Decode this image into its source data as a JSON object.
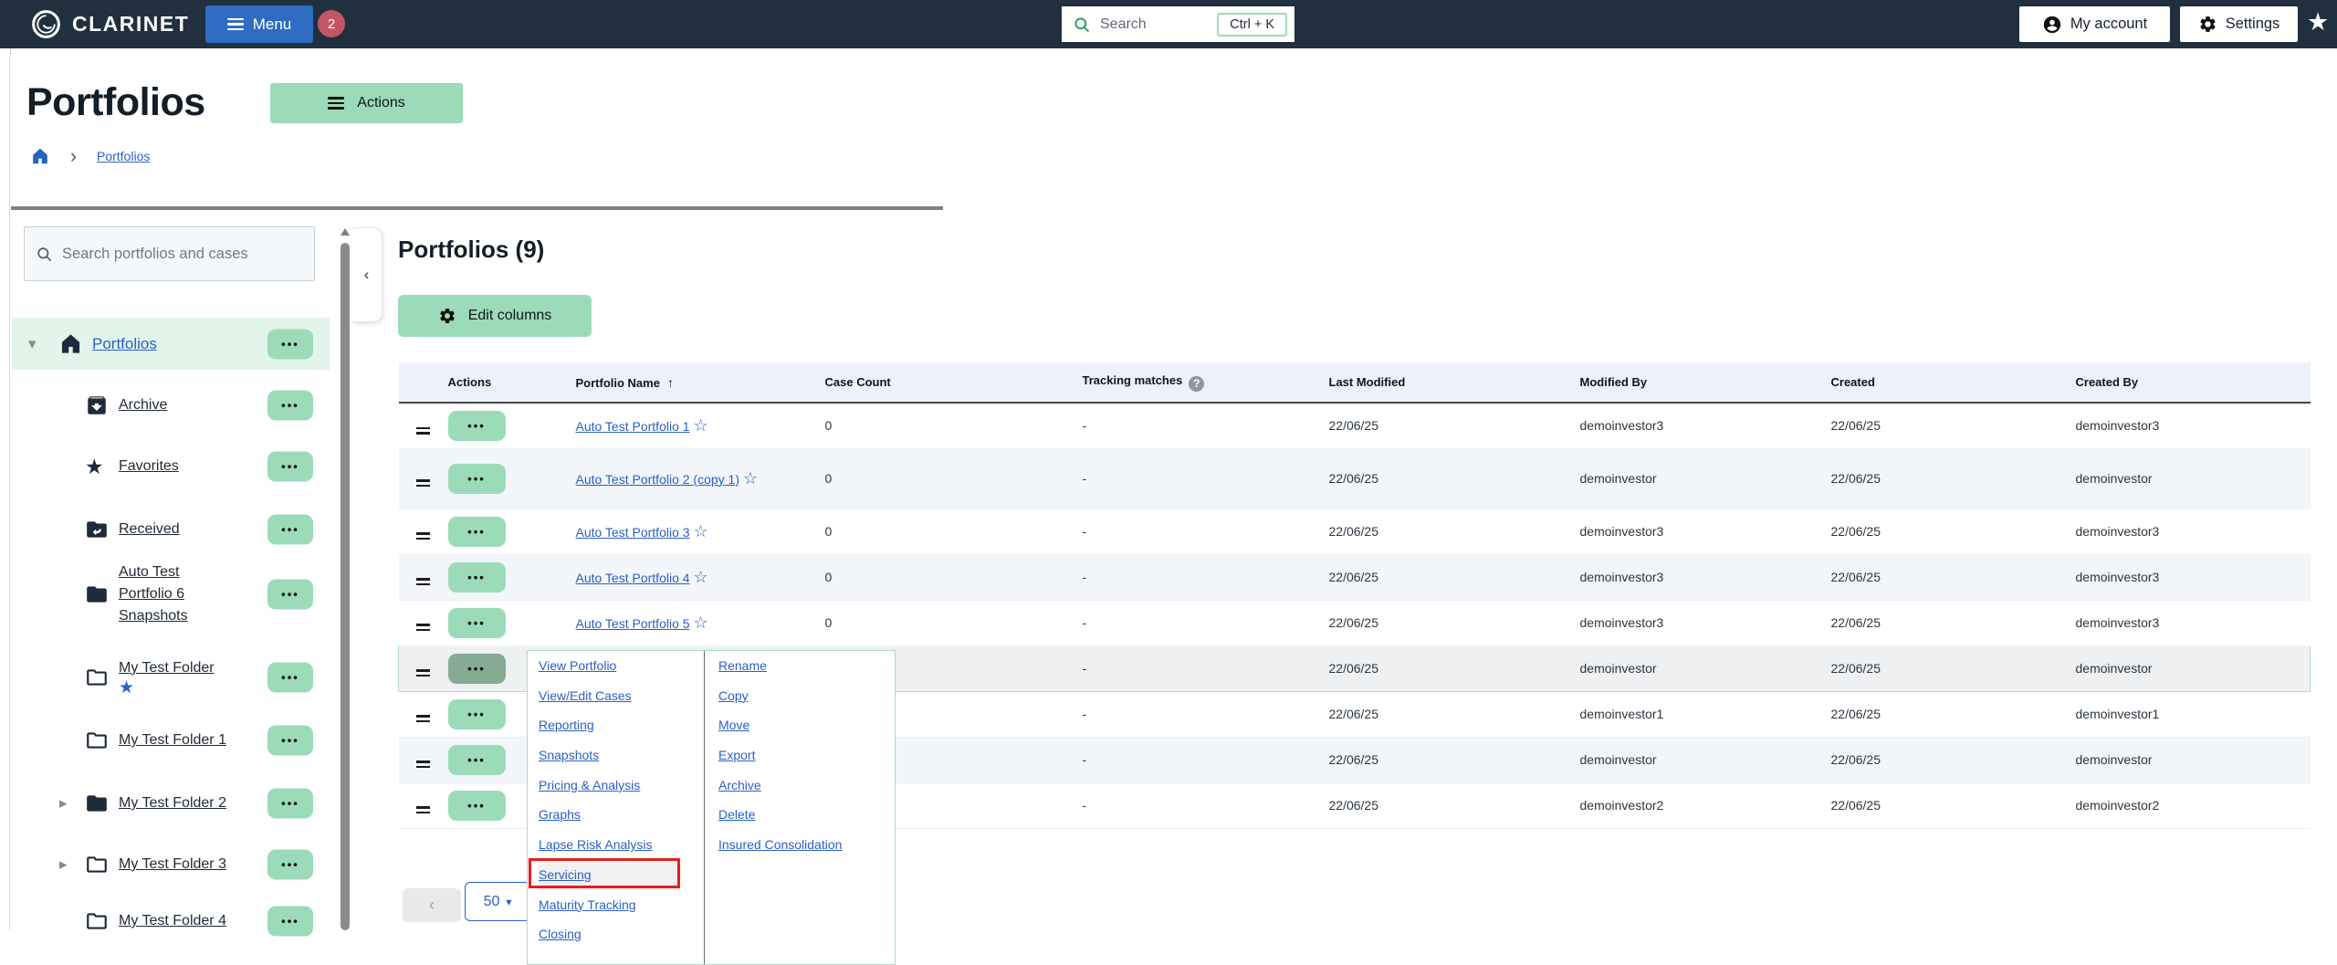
{
  "topbar": {
    "brand": "CLARINET",
    "menu_label": "Menu",
    "notification_count": "2",
    "search_placeholder": "Search",
    "search_shortcut": "Ctrl + K",
    "my_account_label": "My account",
    "settings_label": "Settings"
  },
  "page": {
    "title": "Portfolios",
    "actions_label": "Actions",
    "breadcrumb_current": "Portfolios"
  },
  "sidebar": {
    "search_placeholder": "Search portfolios and cases",
    "items": [
      {
        "label": "Portfolios",
        "icon": "home",
        "caret": "down",
        "selected": true,
        "root": true
      },
      {
        "label": "Archive",
        "icon": "archive"
      },
      {
        "label": "Favorites",
        "icon": "star"
      },
      {
        "label": "Received",
        "icon": "folder-received"
      },
      {
        "label": "Auto Test Portfolio 6 Snapshots",
        "icon": "folder-filled",
        "has_menu": true
      },
      {
        "label": "My Test Folder",
        "icon": "folder-outline",
        "starred": true,
        "has_menu": true
      },
      {
        "label": "My Test Folder 1",
        "icon": "folder-outline",
        "has_menu": true
      },
      {
        "label": "My Test Folder 2",
        "icon": "folder-filled",
        "caret": "right",
        "has_menu": true
      },
      {
        "label": "My Test Folder 3",
        "icon": "folder-outline",
        "caret": "right",
        "has_menu": true
      },
      {
        "label": "My Test Folder 4",
        "icon": "folder-outline",
        "has_menu": true
      }
    ]
  },
  "content": {
    "heading": "Portfolios (9)",
    "edit_columns_label": "Edit columns",
    "table": {
      "columns": [
        "Actions",
        "Portfolio Name",
        "Case Count",
        "Tracking matches",
        "Last Modified",
        "Modified By",
        "Created",
        "Created By"
      ],
      "sorted_column": "Portfolio Name",
      "sort_direction": "asc",
      "rows": [
        {
          "name": "Auto Test Portfolio 1",
          "case_count": "0",
          "tracking_matches": "-",
          "last_modified": "22/06/25",
          "modified_by": "demoinvestor3",
          "created": "22/06/25",
          "created_by": "demoinvestor3"
        },
        {
          "name": "Auto Test Portfolio 2 (copy 1)",
          "case_count": "0",
          "tracking_matches": "-",
          "last_modified": "22/06/25",
          "modified_by": "demoinvestor",
          "created": "22/06/25",
          "created_by": "demoinvestor"
        },
        {
          "name": "Auto Test Portfolio 3",
          "case_count": "0",
          "tracking_matches": "-",
          "last_modified": "22/06/25",
          "modified_by": "demoinvestor3",
          "created": "22/06/25",
          "created_by": "demoinvestor3"
        },
        {
          "name": "Auto Test Portfolio 4",
          "case_count": "0",
          "tracking_matches": "-",
          "last_modified": "22/06/25",
          "modified_by": "demoinvestor3",
          "created": "22/06/25",
          "created_by": "demoinvestor3"
        },
        {
          "name": "Auto Test Portfolio 5",
          "case_count": "0",
          "tracking_matches": "-",
          "last_modified": "22/06/25",
          "modified_by": "demoinvestor3",
          "created": "22/06/25",
          "created_by": "demoinvestor3"
        },
        {
          "name": "",
          "case_count": "",
          "tracking_matches": "-",
          "last_modified": "22/06/25",
          "modified_by": "demoinvestor",
          "created": "22/06/25",
          "created_by": "demoinvestor",
          "menu_open": true
        },
        {
          "name": "",
          "case_count": "",
          "tracking_matches": "-",
          "last_modified": "22/06/25",
          "modified_by": "demoinvestor1",
          "created": "22/06/25",
          "created_by": "demoinvestor1"
        },
        {
          "name": "",
          "case_count": "",
          "tracking_matches": "-",
          "last_modified": "22/06/25",
          "modified_by": "demoinvestor",
          "created": "22/06/25",
          "created_by": "demoinvestor"
        },
        {
          "name": "",
          "case_count": "",
          "tracking_matches": "-",
          "last_modified": "22/06/25",
          "modified_by": "demoinvestor2",
          "created": "22/06/25",
          "created_by": "demoinvestor2"
        }
      ]
    },
    "pagination": {
      "page_size": "50",
      "prev_label": "‹"
    }
  },
  "context_menu": {
    "left_items": [
      "View Portfolio",
      "View/Edit Cases",
      "Reporting",
      "Snapshots",
      "Pricing & Analysis",
      "Graphs",
      "Lapse Risk Analysis",
      "Servicing",
      "Maturity Tracking",
      "Closing"
    ],
    "right_items": [
      "Rename",
      "Copy",
      "Move",
      "Export",
      "Archive",
      "Delete",
      "Insured Consolidation"
    ],
    "annotated_item": "Servicing"
  },
  "colors": {
    "header_bg": "#20303e",
    "accent_green": "#9cdbb8",
    "selected_row_green": "#e1f5ea",
    "menu_button_blue": "#2f6cc3",
    "badge_red": "#c25663",
    "link_blue": "#2a5fc7",
    "annotation_red": "#e41f1f"
  }
}
